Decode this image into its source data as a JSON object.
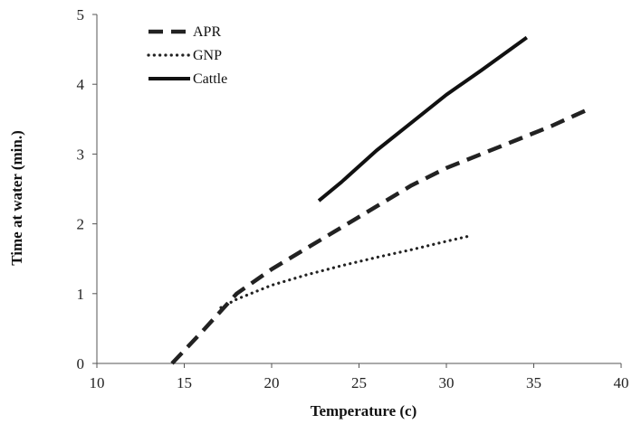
{
  "chart_data": {
    "type": "line",
    "title": "",
    "xlabel": "Temperature (c)",
    "ylabel": "Time at water (min.)",
    "xlim": [
      10,
      40
    ],
    "ylim": [
      0,
      5
    ],
    "xticks": [
      10,
      15,
      20,
      25,
      30,
      35,
      40
    ],
    "yticks": [
      0,
      1,
      2,
      3,
      4,
      5
    ],
    "grid": false,
    "legend_position": "top-left",
    "series": [
      {
        "name": "APR",
        "style": "dashed",
        "color": "#222222",
        "x": [
          14.3,
          16,
          18,
          20,
          22,
          24,
          26,
          28,
          30,
          32,
          34,
          36,
          38.2
        ],
        "y": [
          0,
          0.45,
          1.0,
          1.35,
          1.65,
          1.95,
          2.25,
          2.55,
          2.8,
          3.0,
          3.2,
          3.4,
          3.65
        ]
      },
      {
        "name": "GNP",
        "style": "dotted",
        "color": "#222222",
        "x": [
          17.1,
          18,
          20,
          22,
          24,
          26,
          28,
          30,
          31.4
        ],
        "y": [
          0.8,
          0.92,
          1.12,
          1.27,
          1.4,
          1.52,
          1.63,
          1.75,
          1.83
        ]
      },
      {
        "name": "Cattle",
        "style": "solid",
        "color": "#111111",
        "x": [
          22.7,
          24,
          26,
          28,
          30,
          32,
          34.6
        ],
        "y": [
          2.33,
          2.6,
          3.05,
          3.45,
          3.85,
          4.2,
          4.67
        ]
      }
    ]
  }
}
